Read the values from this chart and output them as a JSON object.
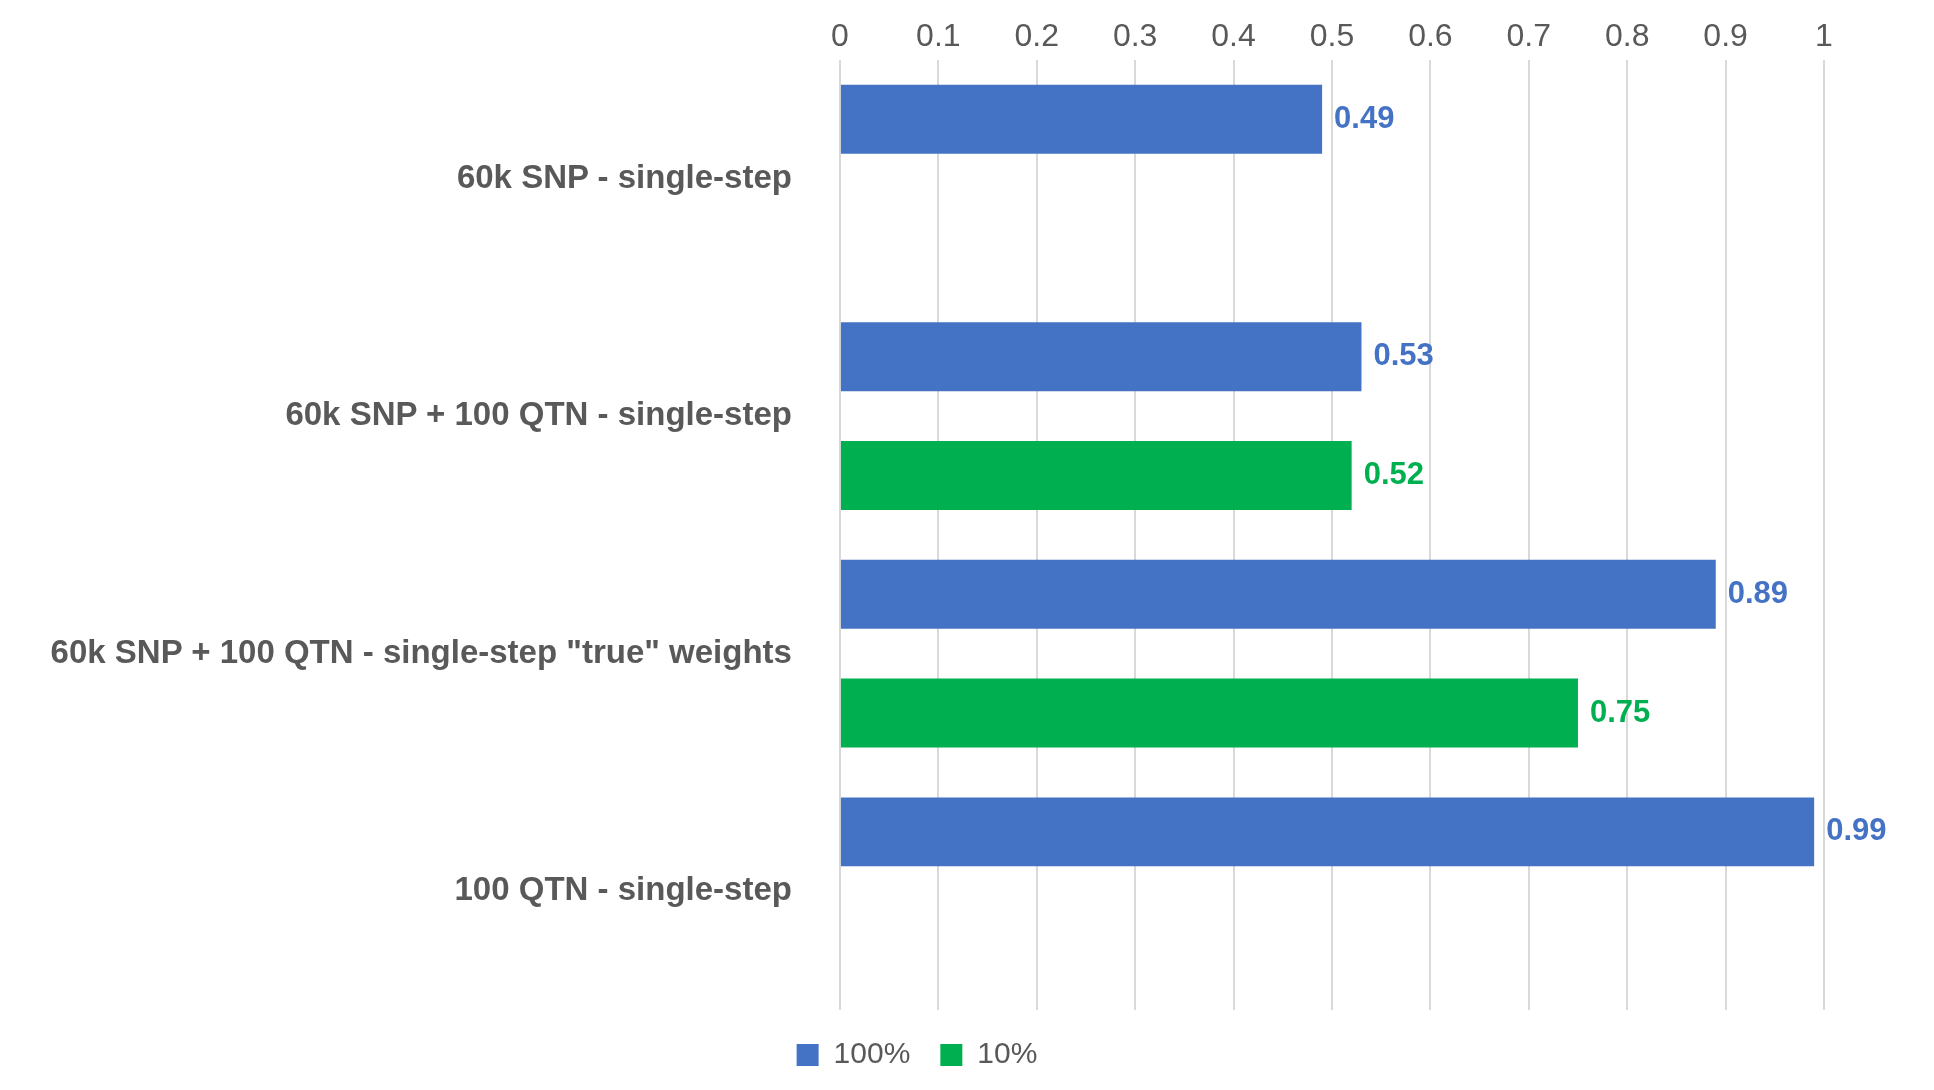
{
  "chart_data": {
    "type": "bar",
    "orientation": "horizontal",
    "categories": [
      "60k SNP - single-step",
      "60k SNP + 100 QTN - single-step",
      "60k SNP + 100 QTN - single-step \"true\" weights",
      "100 QTN - single-step"
    ],
    "series": [
      {
        "name": "100%",
        "color": "#4472c4",
        "values": [
          0.49,
          0.53,
          0.89,
          0.99
        ]
      },
      {
        "name": "10%",
        "color": "#00b050",
        "values": [
          null,
          0.52,
          0.75,
          null
        ]
      }
    ],
    "xlim": [
      0,
      1
    ],
    "xticks": [
      0,
      0.1,
      0.2,
      0.3,
      0.4,
      0.5,
      0.6,
      0.7,
      0.8,
      0.9,
      1
    ],
    "grid": "x",
    "legend": "bottom",
    "data_labels": true
  }
}
